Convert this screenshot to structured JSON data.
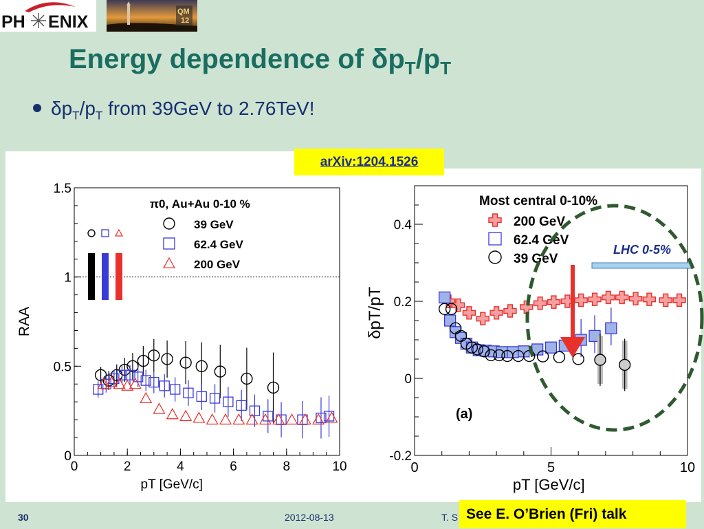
{
  "slide": {
    "logo_text": "PH ENIX",
    "title_main": "Energy dependence of δp",
    "title_sub1": "T",
    "title_mid": "/p",
    "title_sub2": "T",
    "bullet_a": "δp",
    "bullet_s1": "T",
    "bullet_b": "/p",
    "bullet_s2": "T",
    "bullet_c": " from 39GeV to 2.76TeV!",
    "arxiv": "arXiv:1204.1526",
    "page_number": "30",
    "date": "2012-08-13",
    "author_fragment": "T. S",
    "see_talk": "See E. O’Brien (Fri) talk",
    "photo_badge": "QM 12",
    "colors": {
      "title": "#1a6e61",
      "text": "#15306e",
      "highlight": "#ffff00",
      "red": "#e8302c",
      "blue": "#3a3ad8",
      "ellipse": "#2f5a2f"
    }
  },
  "chart_data": [
    {
      "type": "scatter",
      "title": "π0, Au+Au 0-10 %",
      "xlabel": "pT [GeV/c]",
      "ylabel": "RAA",
      "xlim": [
        0,
        10
      ],
      "ylim": [
        0,
        1.5
      ],
      "x_ticks": [
        "0",
        "2",
        "4",
        "6",
        "8",
        "10"
      ],
      "y_ticks": [
        "0",
        "0.5",
        "1",
        "1.5"
      ],
      "reference_line": 1,
      "legend": "top-left",
      "series": [
        {
          "name": "39 GeV",
          "marker": "circle",
          "color": "#000000",
          "points": [
            [
              1.0,
              0.45
            ],
            [
              1.3,
              0.42
            ],
            [
              1.6,
              0.45
            ],
            [
              1.9,
              0.48
            ],
            [
              2.2,
              0.5
            ],
            [
              2.6,
              0.53
            ],
            [
              3.0,
              0.56
            ],
            [
              3.5,
              0.54
            ],
            [
              4.2,
              0.52
            ],
            [
              4.8,
              0.5
            ],
            [
              5.5,
              0.47
            ],
            [
              6.5,
              0.43
            ],
            [
              7.5,
              0.38
            ]
          ]
        },
        {
          "name": "62.4 GeV",
          "marker": "square",
          "color": "#3a3ad8",
          "points": [
            [
              0.9,
              0.37
            ],
            [
              1.2,
              0.4
            ],
            [
              1.5,
              0.43
            ],
            [
              1.8,
              0.45
            ],
            [
              2.1,
              0.45
            ],
            [
              2.4,
              0.44
            ],
            [
              2.7,
              0.42
            ],
            [
              3.0,
              0.41
            ],
            [
              3.4,
              0.39
            ],
            [
              3.8,
              0.37
            ],
            [
              4.3,
              0.35
            ],
            [
              4.8,
              0.33
            ],
            [
              5.3,
              0.32
            ],
            [
              5.8,
              0.3
            ],
            [
              6.3,
              0.28
            ],
            [
              6.8,
              0.25
            ],
            [
              7.3,
              0.22
            ],
            [
              7.8,
              0.2
            ],
            [
              8.6,
              0.2
            ],
            [
              9.3,
              0.21
            ],
            [
              9.6,
              0.22
            ]
          ]
        },
        {
          "name": "200 GeV",
          "marker": "triangle",
          "color": "#e8302c",
          "points": [
            [
              1.1,
              0.4
            ],
            [
              1.4,
              0.41
            ],
            [
              1.7,
              0.4
            ],
            [
              2.0,
              0.39
            ],
            [
              2.3,
              0.4
            ],
            [
              2.7,
              0.32
            ],
            [
              3.2,
              0.26
            ],
            [
              3.7,
              0.23
            ],
            [
              4.2,
              0.22
            ],
            [
              4.7,
              0.21
            ],
            [
              5.2,
              0.2
            ],
            [
              5.7,
              0.2
            ],
            [
              6.2,
              0.2
            ],
            [
              6.7,
              0.2
            ],
            [
              7.2,
              0.2
            ],
            [
              7.7,
              0.2
            ],
            [
              8.2,
              0.2
            ],
            [
              8.7,
              0.2
            ],
            [
              9.2,
              0.2
            ],
            [
              9.7,
              0.21
            ]
          ]
        }
      ]
    },
    {
      "type": "scatter",
      "title": "Most central 0-10%",
      "panel_label": "(a)",
      "xlabel": "pT [GeV/c]",
      "ylabel": "δpT/pT",
      "xlim": [
        0,
        10
      ],
      "ylim": [
        -0.2,
        0.5
      ],
      "x_ticks": [
        "0",
        "5",
        "10"
      ],
      "y_ticks": [
        "-0.2",
        "0",
        "0.2",
        "0.4"
      ],
      "annotation": "LHC 0-5%",
      "series": [
        {
          "name": "200 GeV",
          "marker": "cross",
          "color": "#e8302c",
          "points": [
            [
              1.25,
              0.2
            ],
            [
              1.6,
              0.19
            ],
            [
              2.0,
              0.17
            ],
            [
              2.5,
              0.155
            ],
            [
              3.0,
              0.17
            ],
            [
              3.5,
              0.175
            ],
            [
              4.1,
              0.185
            ],
            [
              4.6,
              0.195
            ],
            [
              5.1,
              0.198
            ],
            [
              5.6,
              0.2
            ],
            [
              6.1,
              0.203
            ],
            [
              6.6,
              0.205
            ],
            [
              7.1,
              0.21
            ],
            [
              7.6,
              0.21
            ],
            [
              8.1,
              0.207
            ],
            [
              8.6,
              0.205
            ],
            [
              9.2,
              0.203
            ],
            [
              9.7,
              0.203
            ]
          ]
        },
        {
          "name": "62.4 GeV",
          "marker": "square",
          "color": "#3a3ad8",
          "points": [
            [
              1.1,
              0.21
            ],
            [
              1.3,
              0.15
            ],
            [
              1.5,
              0.12
            ],
            [
              1.7,
              0.105
            ],
            [
              1.9,
              0.09
            ],
            [
              2.1,
              0.08
            ],
            [
              2.35,
              0.073
            ],
            [
              2.6,
              0.072
            ],
            [
              2.9,
              0.07
            ],
            [
              3.2,
              0.068
            ],
            [
              3.6,
              0.068
            ],
            [
              4.0,
              0.07
            ],
            [
              4.5,
              0.075
            ],
            [
              5.0,
              0.08
            ],
            [
              5.5,
              0.085
            ],
            [
              6.1,
              0.1
            ],
            [
              6.6,
              0.11
            ],
            [
              7.2,
              0.13
            ]
          ]
        },
        {
          "name": "39 GeV",
          "marker": "circle",
          "color": "#000000",
          "points": [
            [
              1.1,
              0.18
            ],
            [
              1.35,
              0.18
            ],
            [
              1.5,
              0.13
            ],
            [
              1.7,
              0.11
            ],
            [
              1.9,
              0.09
            ],
            [
              2.1,
              0.08
            ],
            [
              2.3,
              0.075
            ],
            [
              2.55,
              0.07
            ],
            [
              2.8,
              0.06
            ],
            [
              3.1,
              0.06
            ],
            [
              3.4,
              0.058
            ],
            [
              3.8,
              0.058
            ],
            [
              4.2,
              0.058
            ],
            [
              4.7,
              0.057
            ],
            [
              5.3,
              0.055
            ],
            [
              6.0,
              0.05
            ],
            [
              6.8,
              0.048
            ],
            [
              7.7,
              0.035
            ]
          ]
        }
      ]
    }
  ]
}
